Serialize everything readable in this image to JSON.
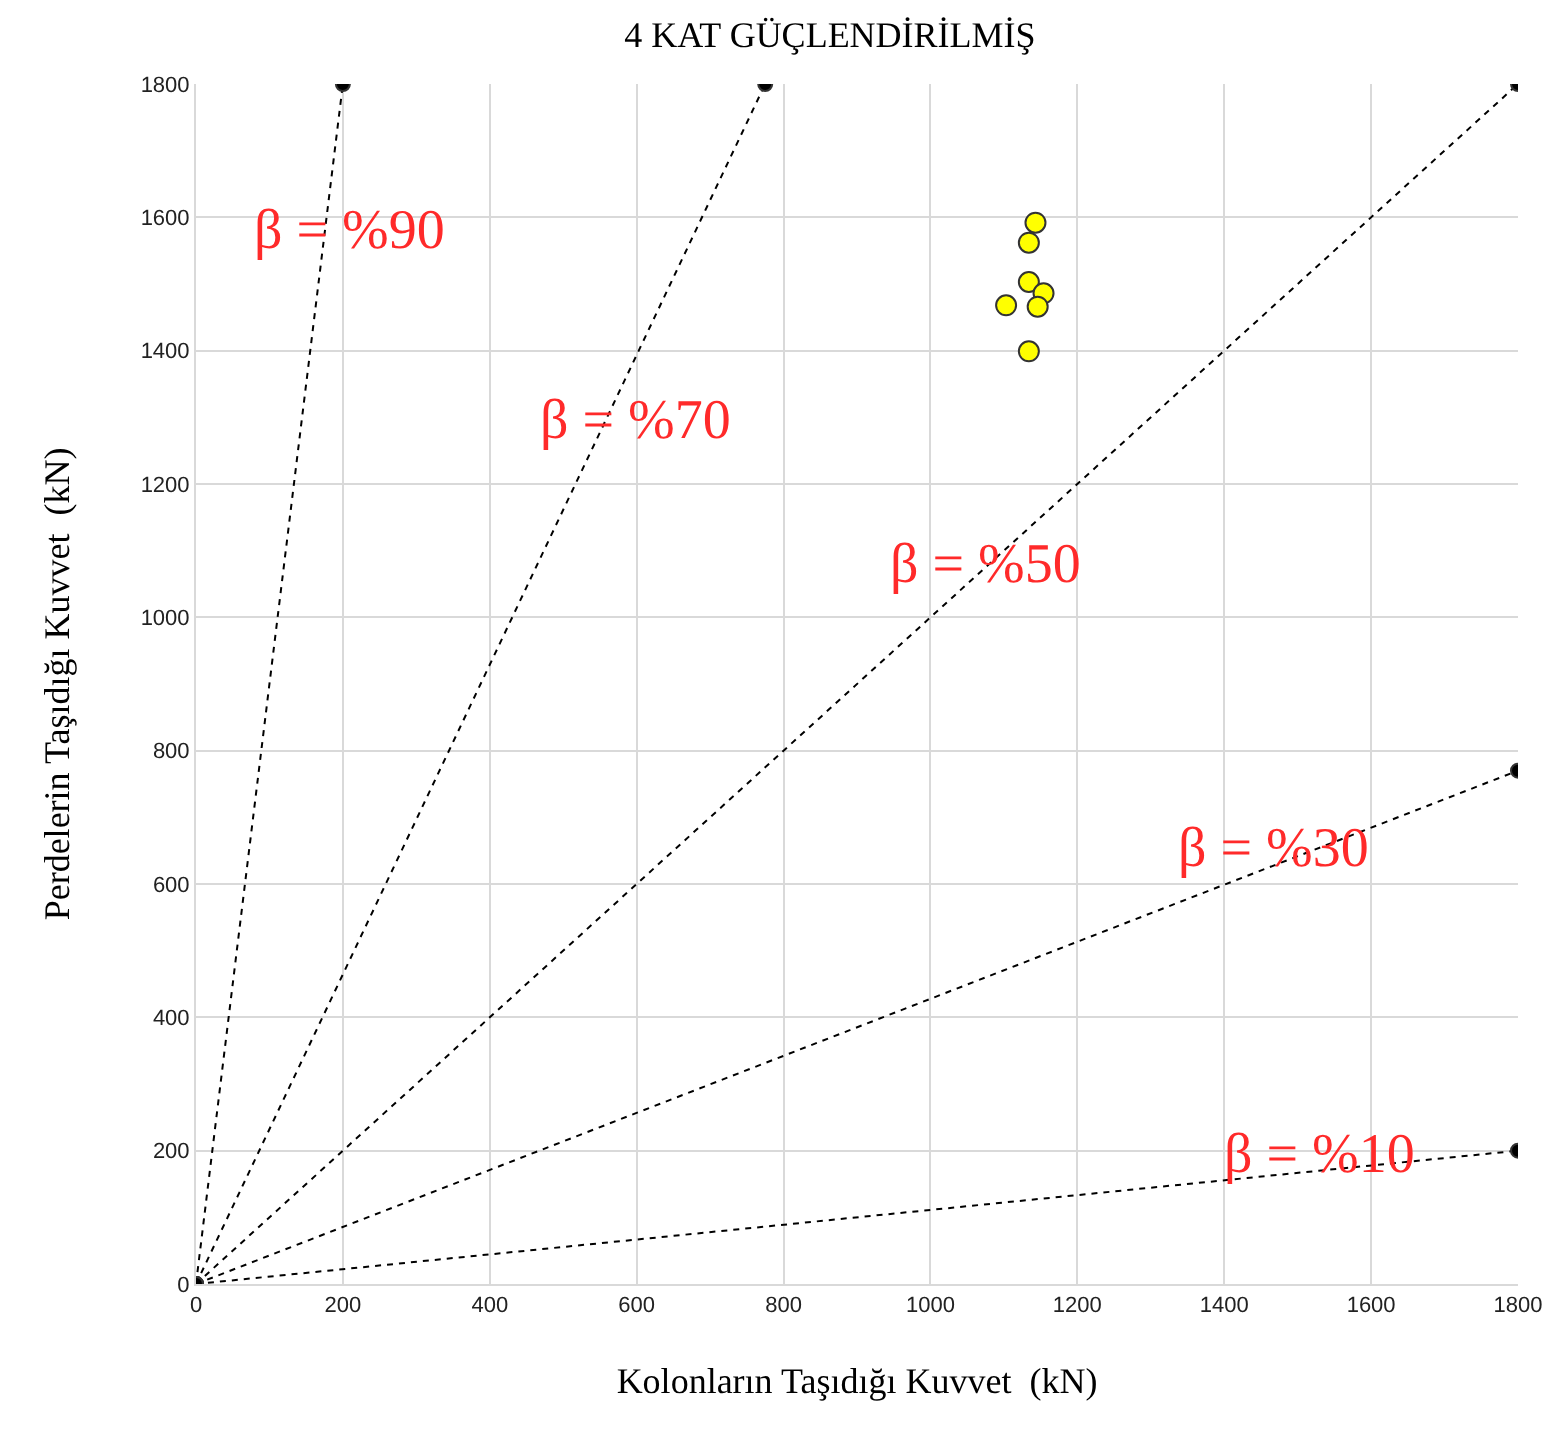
{
  "chart_data": {
    "type": "scatter",
    "title": "4 KAT GÜÇLENDİRİLMİŞ",
    "xlabel": "Kolonların Taşıdığı Kuvvet  (kN)",
    "ylabel": "Perdelerin Taşıdığı Kuvvet  (kN)",
    "xlim": [
      0,
      1800
    ],
    "ylim": [
      0,
      1800
    ],
    "xticks": [
      0,
      200,
      400,
      600,
      800,
      1000,
      1200,
      1400,
      1600,
      1800
    ],
    "yticks": [
      0,
      200,
      400,
      600,
      800,
      1000,
      1200,
      1400,
      1600,
      1800
    ],
    "grid": true,
    "series": [
      {
        "type": "line",
        "color": "#000000",
        "marker": "circle",
        "line_style": "dotted",
        "x": [
          0,
          200
        ],
        "values": [
          0,
          1800
        ]
      },
      {
        "type": "line",
        "color": "#000000",
        "marker": "circle",
        "line_style": "dotted",
        "x": [
          0,
          775
        ],
        "values": [
          0,
          1800
        ]
      },
      {
        "type": "line",
        "color": "#000000",
        "marker": "circle",
        "line_style": "dotted",
        "x": [
          0,
          1800
        ],
        "values": [
          0,
          1800
        ]
      },
      {
        "type": "line",
        "color": "#000000",
        "marker": "circle",
        "line_style": "dotted",
        "x": [
          0,
          1800
        ],
        "values": [
          0,
          770
        ]
      },
      {
        "type": "line",
        "color": "#000000",
        "marker": "circle",
        "line_style": "dotted",
        "x": [
          0,
          1800
        ],
        "values": [
          0,
          200
        ]
      },
      {
        "color": "#ffff00",
        "marker": "circle",
        "x": [
          1143,
          1134,
          1134,
          1154,
          1103,
          1146,
          1134
        ],
        "values": [
          1592,
          1562,
          1503,
          1486,
          1468,
          1466,
          1399
        ]
      }
    ],
    "annotations": [
      "β = %90",
      "β = %70",
      "β = %50",
      "β = %30",
      "β = %10"
    ]
  }
}
